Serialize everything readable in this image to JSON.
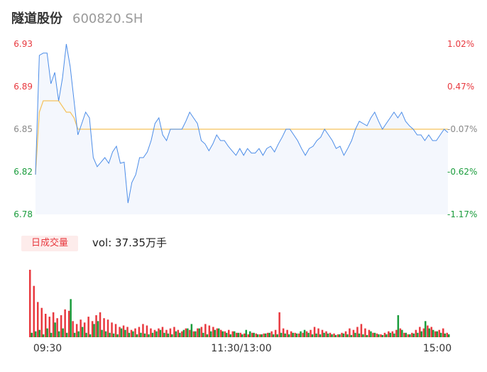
{
  "header": {
    "name": "隧道股份",
    "code": "600820.SH"
  },
  "volume_panel": {
    "badge": "日成交量",
    "vol_prefix": "vol: ",
    "vol_value": "37.35万手"
  },
  "colors": {
    "up": "#e8393f",
    "down": "#1a9c3c",
    "line": "#4c8de8",
    "avg": "#f5c25c",
    "area": "#f4f7fd",
    "neutral": "#888888"
  },
  "chart_data": [
    {
      "type": "line",
      "title": "",
      "x_ticks": [
        "09:30",
        "11:30/13:00",
        "15:00"
      ],
      "y_ticks_left": [
        "6.93",
        "6.89",
        "6.85",
        "6.82",
        "6.78"
      ],
      "y_ticks_right": [
        "1.02%",
        "0.47%",
        "-0.07%",
        "-0.62%",
        "-1.17%"
      ],
      "ylim": [
        6.78,
        6.93
      ],
      "series": [
        {
          "values": [
            6.815,
            6.92,
            6.922,
            6.922,
            6.895,
            6.905,
            6.88,
            6.9,
            6.93,
            6.91,
            6.88,
            6.85,
            6.86,
            6.87,
            6.865,
            6.83,
            6.822,
            6.826,
            6.83,
            6.825,
            6.835,
            6.84,
            6.825,
            6.826,
            6.79,
            6.808,
            6.815,
            6.83,
            6.83,
            6.835,
            6.845,
            6.86,
            6.865,
            6.85,
            6.845,
            6.855,
            6.855,
            6.855,
            6.855,
            6.862,
            6.87,
            6.865,
            6.86,
            6.845,
            6.842,
            6.836,
            6.842,
            6.85,
            6.845,
            6.845,
            6.84,
            6.836,
            6.832,
            6.838,
            6.832,
            6.838,
            6.834,
            6.834,
            6.838,
            6.832,
            6.838,
            6.84,
            6.835,
            6.842,
            6.848,
            6.855,
            6.855,
            6.85,
            6.845,
            6.838,
            6.832,
            6.838,
            6.84,
            6.845,
            6.848,
            6.855,
            6.85,
            6.845,
            6.838,
            6.84,
            6.832,
            6.838,
            6.845,
            6.855,
            6.862,
            6.86,
            6.858,
            6.865,
            6.87,
            6.862,
            6.855,
            6.86,
            6.865,
            6.87,
            6.865,
            6.87,
            6.862,
            6.858,
            6.855,
            6.85,
            6.85,
            6.845,
            6.85,
            6.845,
            6.845,
            6.85,
            6.855,
            6.852
          ]
        },
        {
          "values": [
            6.815,
            6.87,
            6.88,
            6.88,
            6.88,
            6.88,
            6.88,
            6.875,
            6.87,
            6.87,
            6.865,
            6.855,
            6.855,
            6.855,
            6.855,
            6.855,
            6.855,
            6.855,
            6.855,
            6.855,
            6.855,
            6.855,
            6.855,
            6.855,
            6.855,
            6.855,
            6.855,
            6.855,
            6.855,
            6.855,
            6.855,
            6.855,
            6.855,
            6.855,
            6.855,
            6.855,
            6.855,
            6.855,
            6.855,
            6.855,
            6.855,
            6.855,
            6.855,
            6.855,
            6.855,
            6.855,
            6.855,
            6.855,
            6.855,
            6.855,
            6.855,
            6.855,
            6.855,
            6.855,
            6.855,
            6.855,
            6.855,
            6.855,
            6.855,
            6.855,
            6.855,
            6.855,
            6.855,
            6.855,
            6.855,
            6.855,
            6.855,
            6.855,
            6.855,
            6.855,
            6.855,
            6.855,
            6.855,
            6.855,
            6.855,
            6.855,
            6.855,
            6.855,
            6.855,
            6.855,
            6.855,
            6.855,
            6.855,
            6.855,
            6.855,
            6.855,
            6.855,
            6.855,
            6.855,
            6.855,
            6.855,
            6.855,
            6.855,
            6.855,
            6.855,
            6.855,
            6.855,
            6.855,
            6.855,
            6.855,
            6.855,
            6.855,
            6.855,
            6.855,
            6.855,
            6.855,
            6.855,
            6.855
          ]
        }
      ]
    },
    {
      "type": "bar",
      "title": "",
      "series": [
        {
          "values": [
            92,
            70,
            48,
            40,
            32,
            28,
            34,
            26,
            30,
            38,
            36,
            22,
            18,
            24,
            20,
            28,
            22,
            30,
            34,
            26,
            24,
            20,
            18,
            14,
            16,
            14,
            10,
            12,
            14,
            18,
            16,
            12,
            10,
            12,
            14,
            10,
            12,
            14,
            10,
            8,
            12,
            10,
            8,
            12,
            14,
            18,
            16,
            14,
            12,
            10,
            8,
            10,
            8,
            6,
            6,
            5,
            4,
            6,
            5,
            4,
            5,
            6,
            8,
            10,
            34,
            12,
            10,
            8,
            6,
            5,
            6,
            8,
            10,
            14,
            12,
            10,
            8,
            6,
            5,
            4,
            6,
            8,
            12,
            10,
            14,
            18,
            12,
            10,
            6,
            5,
            4,
            6,
            8,
            8,
            10,
            12,
            6,
            4,
            6,
            10,
            14,
            12,
            16,
            14,
            8,
            10,
            12,
            6
          ]
        },
        {
          "values": [
            6,
            8,
            10,
            4,
            12,
            6,
            20,
            8,
            12,
            6,
            52,
            6,
            8,
            14,
            6,
            4,
            18,
            22,
            10,
            8,
            6,
            5,
            4,
            12,
            10,
            6,
            8,
            4,
            6,
            5,
            4,
            6,
            8,
            10,
            6,
            5,
            4,
            8,
            6,
            10,
            12,
            18,
            8,
            12,
            6,
            4,
            8,
            10,
            12,
            8,
            6,
            4,
            8,
            6,
            4,
            10,
            8,
            6,
            4,
            4,
            5,
            6,
            4,
            4,
            6,
            5,
            4,
            6,
            5,
            8,
            10,
            6,
            4,
            5,
            4,
            6,
            5,
            4,
            3,
            4,
            5,
            4,
            3,
            6,
            5,
            4,
            3,
            8,
            6,
            4,
            3,
            4,
            6,
            5,
            30,
            10,
            6,
            4,
            5,
            6,
            8,
            22,
            12,
            10,
            8,
            6,
            5,
            4
          ]
        }
      ]
    }
  ]
}
